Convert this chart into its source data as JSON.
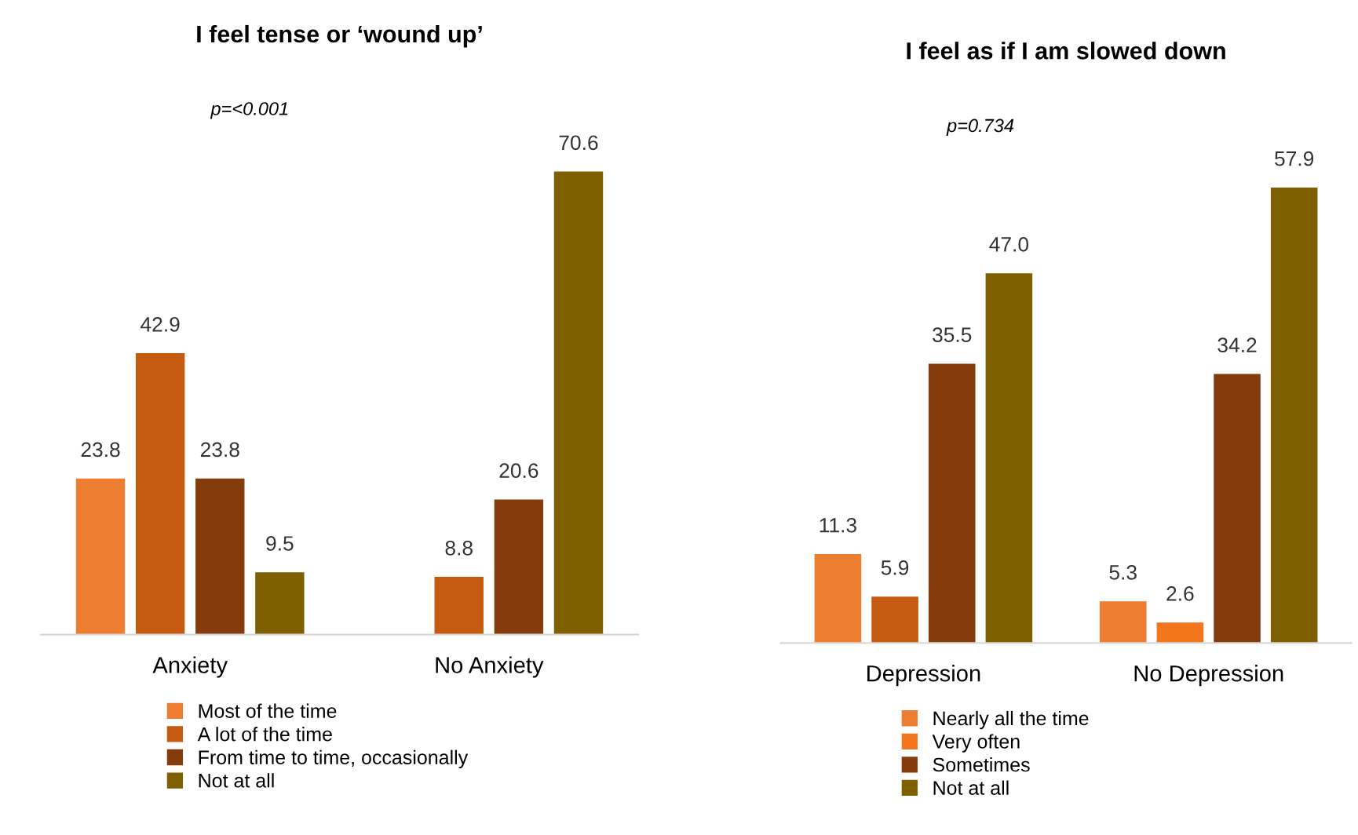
{
  "chart_data": [
    {
      "type": "bar",
      "title": "I feel tense or ‘wound up’",
      "annotations": [
        "p=<0.001"
      ],
      "categories": [
        "Anxiety",
        "No Anxiety"
      ],
      "legend": "bottom left",
      "series": [
        {
          "name": "Most of the time",
          "color": "#ed7d31",
          "values": [
            23.8,
            null
          ],
          "value_labels": [
            "23.8",
            null
          ]
        },
        {
          "name": "A lot of the time",
          "color": "#c55a11",
          "values": [
            42.9,
            8.8
          ],
          "value_labels": [
            "42.9",
            "8.8"
          ]
        },
        {
          "name": "From time to time, occasionally",
          "color": "#843c0c",
          "values": [
            23.8,
            20.6
          ],
          "value_labels": [
            "23.8",
            "20.6"
          ]
        },
        {
          "name": "Not at all",
          "color": "#7f6000",
          "values": [
            9.5,
            70.6
          ],
          "value_labels": [
            "9.5",
            "70.6"
          ]
        }
      ]
    },
    {
      "type": "bar",
      "title": "I feel as if I am slowed down",
      "annotations": [
        "p=0.734"
      ],
      "categories": [
        "Depression",
        "No Depression"
      ],
      "legend": "bottom left",
      "series": [
        {
          "name": "Nearly all the time",
          "color": "#ed7d31",
          "values": [
            11.3,
            5.3
          ],
          "value_labels": [
            "11.3",
            "5.3"
          ]
        },
        {
          "name": "Very often",
          "color": "#f4761c",
          "colors": [
            "#c55a11",
            "#f4761c"
          ],
          "values": [
            5.9,
            2.6
          ],
          "value_labels": [
            "5.9",
            "2.6"
          ]
        },
        {
          "name": "Sometimes",
          "color": "#843c0c",
          "values": [
            35.5,
            34.2
          ],
          "value_labels": [
            "35.5",
            "34.2"
          ]
        },
        {
          "name": "Not at all",
          "color": "#7f6000",
          "values": [
            47.0,
            57.9
          ],
          "value_labels": [
            "47.0",
            "57.9"
          ]
        }
      ]
    }
  ]
}
